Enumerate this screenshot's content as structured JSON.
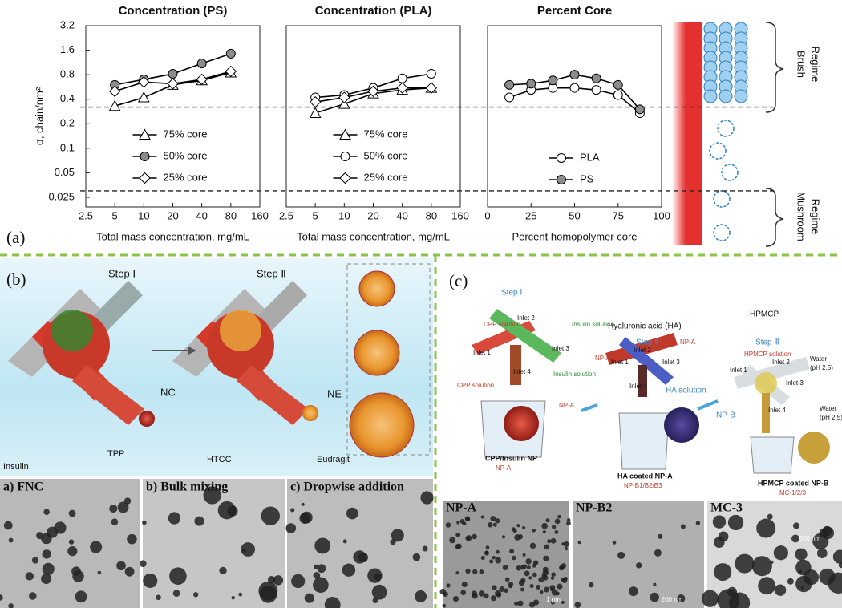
{
  "chart_data": [
    {
      "type": "line",
      "title": "Concentration (PS)",
      "xlabel": "Total mass concentration, mg/mL",
      "ylabel": "σ, chain/nm²",
      "xlog": true,
      "ylog": true,
      "x": [
        5,
        10,
        20,
        40,
        80
      ],
      "xlim": [
        2.5,
        160
      ],
      "xticks": [
        2.5,
        5,
        10,
        20,
        40,
        80,
        160
      ],
      "ylim": [
        0.025,
        3.2
      ],
      "yticks": [
        0.025,
        0.05,
        0.1,
        0.2,
        0.4,
        0.8,
        1.6,
        3.2
      ],
      "hlines": [
        0.32,
        0.03
      ],
      "legend": "lower center",
      "series": [
        {
          "name": "75% core",
          "color": "#000000",
          "marker": "triangle",
          "marker_fill": "#ffffff",
          "values": [
            0.33,
            0.42,
            0.6,
            0.68,
            0.85
          ]
        },
        {
          "name": "50% core",
          "color": "#000000",
          "marker": "circle",
          "marker_fill": "#8c8c8c",
          "values": [
            0.6,
            0.7,
            0.82,
            1.1,
            1.45
          ]
        },
        {
          "name": "25% core",
          "color": "#000000",
          "marker": "diamond",
          "marker_fill": "#ffffff",
          "values": [
            0.5,
            0.65,
            0.62,
            0.7,
            0.88
          ]
        }
      ]
    },
    {
      "type": "line",
      "title": "Concentration (PLA)",
      "xlabel": "Total mass concentration, mg/mL",
      "xlog": true,
      "ylog": true,
      "x": [
        5,
        10,
        20,
        40,
        80
      ],
      "xlim": [
        2.5,
        160
      ],
      "xticks": [
        2.5,
        5,
        10,
        20,
        40,
        80,
        160
      ],
      "ylim": [
        0.025,
        3.2
      ],
      "legend": "lower center",
      "series": [
        {
          "name": "75% core",
          "color": "#000000",
          "marker": "triangle",
          "marker_fill": "#ffffff",
          "values": [
            0.27,
            0.35,
            0.47,
            0.52,
            0.55
          ]
        },
        {
          "name": "50% core",
          "color": "#000000",
          "marker": "circle",
          "marker_fill": "#ffffff",
          "values": [
            0.42,
            0.45,
            0.55,
            0.72,
            0.82
          ]
        },
        {
          "name": "25% core",
          "color": "#000000",
          "marker": "diamond",
          "marker_fill": "#ffffff",
          "values": [
            0.37,
            0.42,
            0.5,
            0.55,
            0.55
          ]
        }
      ]
    },
    {
      "type": "line",
      "title": "Percent Core",
      "xlabel": "Percent homopolymer core",
      "xlog": false,
      "ylog": true,
      "x": [
        12.5,
        25,
        37.5,
        50,
        62.5,
        75,
        87.5
      ],
      "xlim": [
        0,
        100
      ],
      "xticks": [
        0,
        25,
        50,
        75,
        100
      ],
      "ylim": [
        0.025,
        3.2
      ],
      "legend": "lower right",
      "series": [
        {
          "name": "PLA",
          "color": "#000000",
          "marker": "circle",
          "marker_fill": "#ffffff",
          "values": [
            0.42,
            0.52,
            0.55,
            0.55,
            0.52,
            0.45,
            0.27
          ]
        },
        {
          "name": "PS",
          "color": "#000000",
          "marker": "circle",
          "marker_fill": "#8c8c8c",
          "values": [
            0.6,
            0.62,
            0.68,
            0.8,
            0.72,
            0.6,
            0.3
          ]
        }
      ]
    }
  ],
  "panel_a": {
    "label": "(a)",
    "brush": [
      "Brush",
      "Regime"
    ],
    "mushroom": [
      "Mushroom",
      "Regime"
    ]
  },
  "panel_b": {
    "label": "(b)",
    "step1": "Step Ⅰ",
    "step2": "Step Ⅱ",
    "nc": "NC",
    "ne": "NE",
    "legend": [
      "Insulin",
      "TPP",
      "HTCC",
      "Eudragit"
    ],
    "micrographs": [
      "a) FNC",
      "b) Bulk mixing",
      "c) Dropwise addition"
    ]
  },
  "panel_c": {
    "label": "(c)",
    "labels": [
      "Step Ⅰ",
      "Hyaluronic acid (HA)",
      "Step Ⅱ",
      "HPMCP",
      "Step Ⅲ",
      "CPP solution",
      "Insulin solution",
      "Inlet 1",
      "Inlet 2",
      "Inlet 3",
      "Inlet 4",
      "CPP solution",
      "Insulin solution",
      "NP-A",
      "NP-A",
      "NP-A",
      "Inlet 2",
      "Inlet 1",
      "Inlet 3",
      "Inlet 4",
      "HA solution",
      "HPMCP solution",
      "Water",
      "(pH 2.5)",
      "Inlet 2",
      "Inlet 1",
      "Inlet 3",
      "Inlet 4",
      "Water",
      "(pH 2.5)",
      "NP-B",
      "CPP/Insulin NP",
      "NP-A",
      "HA coated NP-A",
      "NP-B1/B2/B3",
      "HPMCP coated NP-B",
      "MC-1/2/3"
    ],
    "micrographs": [
      "NP-A",
      "NP-B2",
      "MC-3"
    ],
    "scales": [
      "1 μm",
      "200 nm",
      "500 nm"
    ]
  }
}
